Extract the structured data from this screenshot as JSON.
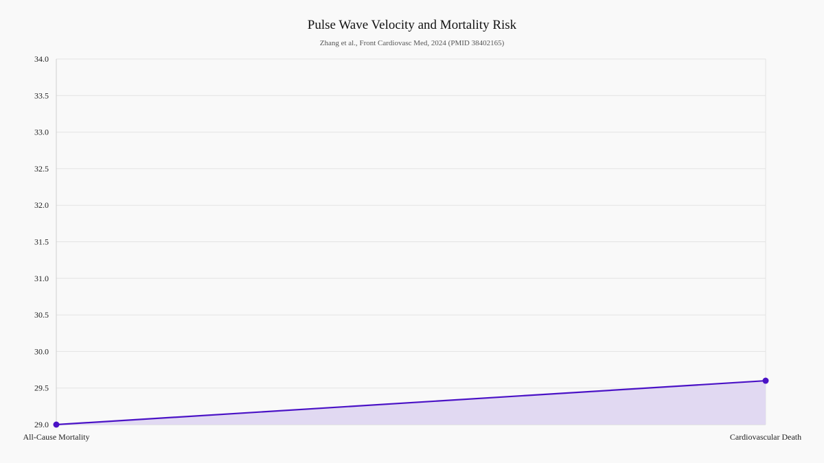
{
  "chart_data": {
    "type": "area",
    "title": "Pulse Wave Velocity and Mortality Risk",
    "subtitle": "Zhang et al., Front Cardiovasc Med, 2024 (PMID 38402165)",
    "categories": [
      "All-Cause Mortality",
      "Cardiovascular Death"
    ],
    "series": [
      {
        "values": [
          29.0,
          29.6
        ]
      }
    ],
    "ylim": [
      29.0,
      34.0
    ],
    "yticks": [
      "29.0",
      "29.5",
      "30.0",
      "30.5",
      "31.0",
      "31.5",
      "32.0",
      "32.5",
      "33.0",
      "33.5",
      "34.0"
    ],
    "grid": true,
    "legend": "none",
    "colors": {
      "line": "#4a12c6",
      "fill": "#e1d9f2",
      "point": "#4a12c6",
      "grid": "#e3e3e3",
      "axis": "#cfcfcf",
      "background": "#f9f9f9"
    }
  }
}
